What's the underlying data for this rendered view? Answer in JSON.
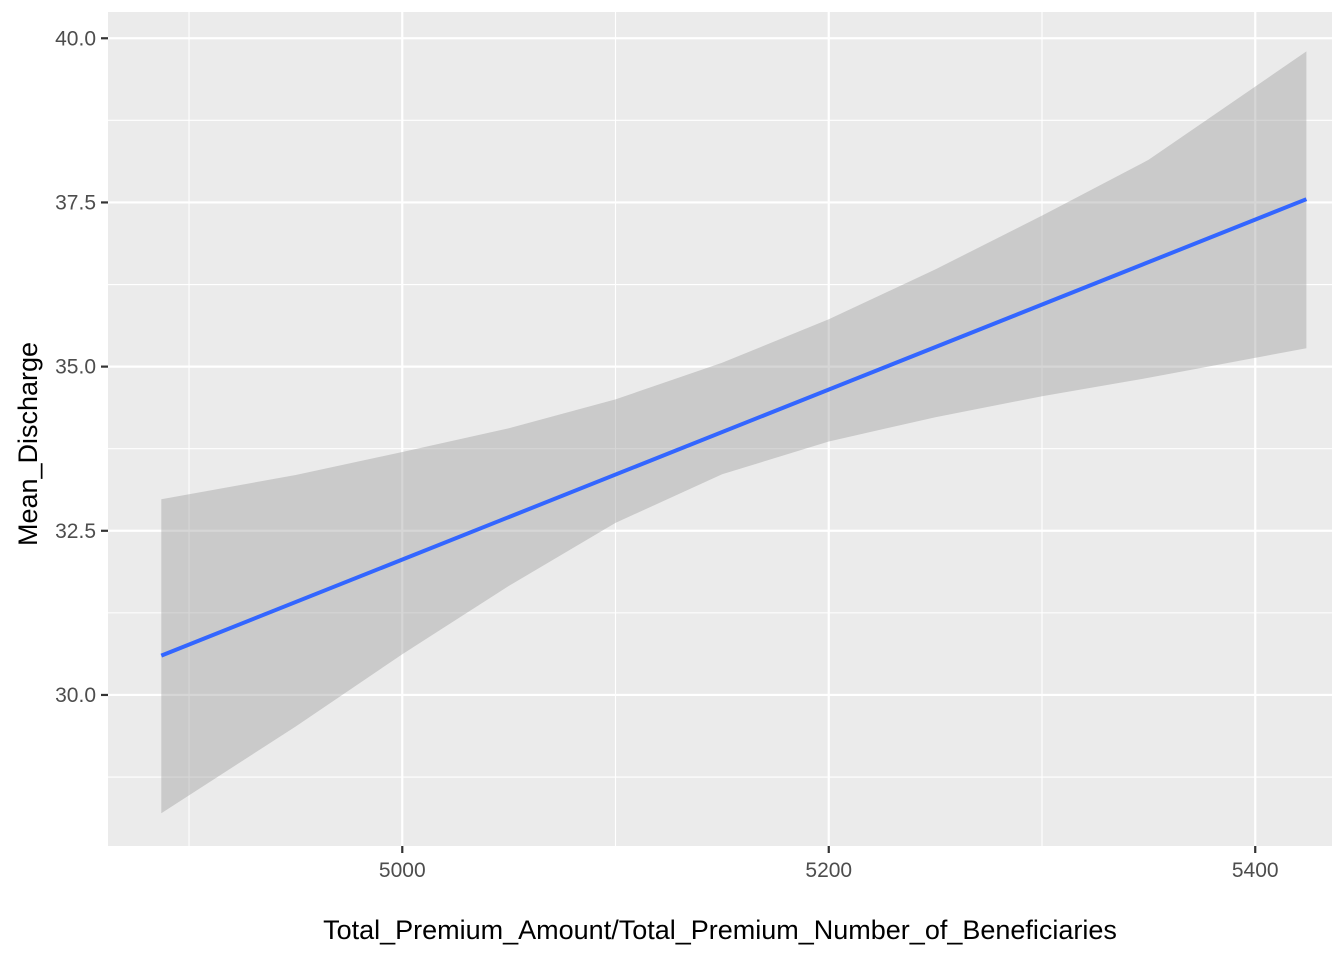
{
  "chart_data": {
    "type": "line",
    "title": "",
    "xlabel": "Total_Premium_Amount/Total_Premium_Number_of_Beneficiaries",
    "ylabel": "Mean_Discharge",
    "xlim": [
      4862,
      5436
    ],
    "ylim": [
      27.7,
      40.4
    ],
    "x_major_ticks": [
      5000,
      5200,
      5400
    ],
    "x_minor_ticks": [
      4900,
      5100,
      5300
    ],
    "y_major_ticks": [
      30.0,
      32.5,
      35.0,
      37.5,
      40.0
    ],
    "y_minor_ticks": [
      28.75,
      31.25,
      33.75,
      36.25,
      38.75
    ],
    "x_tick_labels": [
      "5000",
      "5200",
      "5400"
    ],
    "y_tick_labels": [
      "30.0",
      "32.5",
      "35.0",
      "37.5",
      "40.0"
    ],
    "grid": true,
    "colors": {
      "panel": "#EBEBEB",
      "grid": "#FFFFFF",
      "line": "#3366FF",
      "ribbon": "#999999"
    },
    "series": [
      {
        "x": [
          4887,
          5424
        ],
        "y": [
          30.6,
          37.55
        ],
        "ci_x": [
          4887,
          4950,
          5000,
          5050,
          5100,
          5150,
          5200,
          5250,
          5300,
          5350,
          5424
        ],
        "ci_upper": [
          32.98,
          33.35,
          33.7,
          34.06,
          34.5,
          35.06,
          35.72,
          36.48,
          37.3,
          38.15,
          39.8
        ],
        "ci_lower": [
          28.2,
          29.52,
          30.62,
          31.66,
          32.62,
          33.36,
          33.86,
          34.23,
          34.55,
          34.83,
          35.28
        ]
      }
    ]
  }
}
